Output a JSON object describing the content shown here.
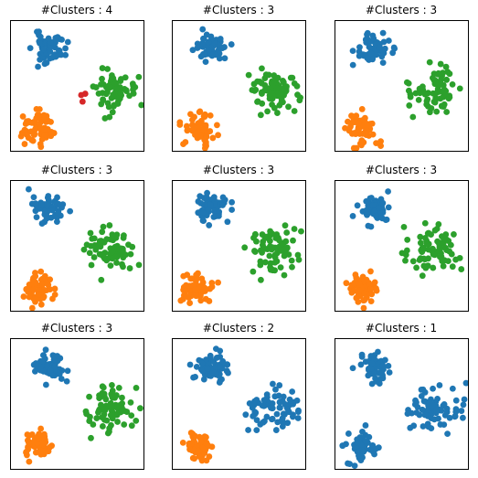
{
  "figure": {
    "palette": {
      "blue": "#1f77b4",
      "orange": "#ff7f0e",
      "green": "#2ca02c",
      "red": "#d62728"
    }
  },
  "chart_data": [
    {
      "type": "scatter",
      "title": "#Clusters : 4",
      "xlim": [
        0,
        10
      ],
      "ylim": [
        0,
        10
      ],
      "grid": false,
      "series": [
        {
          "color": "#1f77b4",
          "center": [
            2.9,
            7.9
          ],
          "spread": [
            0.6,
            0.55
          ],
          "count": 60,
          "seed": 11
        },
        {
          "color": "#ff7f0e",
          "center": [
            2.0,
            1.8
          ],
          "spread": [
            0.55,
            0.6
          ],
          "count": 60,
          "seed": 12
        },
        {
          "color": "#2ca02c",
          "center": [
            7.5,
            4.6
          ],
          "spread": [
            0.9,
            0.8
          ],
          "count": 70,
          "seed": 13
        },
        {
          "color": "#d62728",
          "points": [
            [
              5.3,
              4.3
            ],
            [
              5.6,
              4.4
            ],
            [
              5.4,
              3.8
            ]
          ]
        }
      ]
    },
    {
      "type": "scatter",
      "title": "#Clusters : 3",
      "xlim": [
        0,
        10
      ],
      "ylim": [
        0,
        10
      ],
      "grid": false,
      "series": [
        {
          "color": "#1f77b4",
          "center": [
            2.9,
            7.9
          ],
          "spread": [
            0.6,
            0.55
          ],
          "count": 60,
          "seed": 21
        },
        {
          "color": "#ff7f0e",
          "center": [
            2.0,
            1.8
          ],
          "spread": [
            0.55,
            0.6
          ],
          "count": 60,
          "seed": 22
        },
        {
          "color": "#2ca02c",
          "center": [
            7.5,
            4.6
          ],
          "spread": [
            0.95,
            0.85
          ],
          "count": 73,
          "seed": 23
        }
      ]
    },
    {
      "type": "scatter",
      "title": "#Clusters : 3",
      "xlim": [
        0,
        10
      ],
      "ylim": [
        0,
        10
      ],
      "grid": false,
      "series": [
        {
          "color": "#1f77b4",
          "center": [
            2.9,
            7.9
          ],
          "spread": [
            0.6,
            0.55
          ],
          "count": 60,
          "seed": 31
        },
        {
          "color": "#ff7f0e",
          "center": [
            2.0,
            1.8
          ],
          "spread": [
            0.55,
            0.6
          ],
          "count": 60,
          "seed": 32
        },
        {
          "color": "#2ca02c",
          "center": [
            7.5,
            4.6
          ],
          "spread": [
            0.95,
            0.85
          ],
          "count": 73,
          "seed": 33
        }
      ]
    },
    {
      "type": "scatter",
      "title": "#Clusters : 3",
      "xlim": [
        0,
        10
      ],
      "ylim": [
        0,
        10
      ],
      "grid": false,
      "series": [
        {
          "color": "#1f77b4",
          "center": [
            2.9,
            7.9
          ],
          "spread": [
            0.6,
            0.55
          ],
          "count": 60,
          "seed": 41
        },
        {
          "color": "#ff7f0e",
          "center": [
            2.0,
            1.8
          ],
          "spread": [
            0.55,
            0.6
          ],
          "count": 60,
          "seed": 42
        },
        {
          "color": "#2ca02c",
          "center": [
            7.5,
            4.6
          ],
          "spread": [
            0.95,
            0.85
          ],
          "count": 73,
          "seed": 43
        }
      ]
    },
    {
      "type": "scatter",
      "title": "#Clusters : 3",
      "xlim": [
        0,
        10
      ],
      "ylim": [
        0,
        10
      ],
      "grid": false,
      "series": [
        {
          "color": "#1f77b4",
          "center": [
            2.9,
            7.9
          ],
          "spread": [
            0.6,
            0.55
          ],
          "count": 60,
          "seed": 51
        },
        {
          "color": "#ff7f0e",
          "center": [
            2.0,
            1.8
          ],
          "spread": [
            0.55,
            0.6
          ],
          "count": 60,
          "seed": 52
        },
        {
          "color": "#2ca02c",
          "center": [
            7.5,
            4.6
          ],
          "spread": [
            0.95,
            0.85
          ],
          "count": 73,
          "seed": 53
        }
      ]
    },
    {
      "type": "scatter",
      "title": "#Clusters : 3",
      "xlim": [
        0,
        10
      ],
      "ylim": [
        0,
        10
      ],
      "grid": false,
      "series": [
        {
          "color": "#1f77b4",
          "center": [
            2.9,
            7.9
          ],
          "spread": [
            0.6,
            0.55
          ],
          "count": 60,
          "seed": 61
        },
        {
          "color": "#ff7f0e",
          "center": [
            2.0,
            1.8
          ],
          "spread": [
            0.55,
            0.6
          ],
          "count": 60,
          "seed": 62
        },
        {
          "color": "#2ca02c",
          "center": [
            7.5,
            4.6
          ],
          "spread": [
            0.95,
            0.85
          ],
          "count": 73,
          "seed": 63
        }
      ]
    },
    {
      "type": "scatter",
      "title": "#Clusters : 3",
      "xlim": [
        0,
        10
      ],
      "ylim": [
        0,
        10
      ],
      "grid": false,
      "series": [
        {
          "color": "#1f77b4",
          "center": [
            2.9,
            7.9
          ],
          "spread": [
            0.6,
            0.55
          ],
          "count": 60,
          "seed": 71
        },
        {
          "color": "#ff7f0e",
          "center": [
            2.0,
            1.8
          ],
          "spread": [
            0.55,
            0.6
          ],
          "count": 60,
          "seed": 72
        },
        {
          "color": "#2ca02c",
          "center": [
            7.5,
            4.6
          ],
          "spread": [
            0.95,
            0.85
          ],
          "count": 73,
          "seed": 73
        }
      ]
    },
    {
      "type": "scatter",
      "title": "#Clusters : 2",
      "xlim": [
        0,
        10
      ],
      "ylim": [
        0,
        10
      ],
      "grid": false,
      "series": [
        {
          "color": "#1f77b4",
          "center": [
            2.9,
            7.9
          ],
          "spread": [
            0.6,
            0.55
          ],
          "count": 60,
          "seed": 81
        },
        {
          "color": "#ff7f0e",
          "center": [
            2.0,
            1.8
          ],
          "spread": [
            0.55,
            0.6
          ],
          "count": 60,
          "seed": 82
        },
        {
          "color": "#1f77b4",
          "center": [
            7.5,
            4.6
          ],
          "spread": [
            0.95,
            0.85
          ],
          "count": 73,
          "seed": 83
        }
      ]
    },
    {
      "type": "scatter",
      "title": "#Clusters : 1",
      "xlim": [
        0,
        10
      ],
      "ylim": [
        0,
        10
      ],
      "grid": false,
      "series": [
        {
          "color": "#1f77b4",
          "center": [
            2.9,
            7.9
          ],
          "spread": [
            0.6,
            0.55
          ],
          "count": 60,
          "seed": 91
        },
        {
          "color": "#1f77b4",
          "center": [
            2.0,
            1.8
          ],
          "spread": [
            0.55,
            0.6
          ],
          "count": 60,
          "seed": 92
        },
        {
          "color": "#1f77b4",
          "center": [
            7.5,
            4.6
          ],
          "spread": [
            0.95,
            0.85
          ],
          "count": 73,
          "seed": 93
        }
      ]
    }
  ]
}
